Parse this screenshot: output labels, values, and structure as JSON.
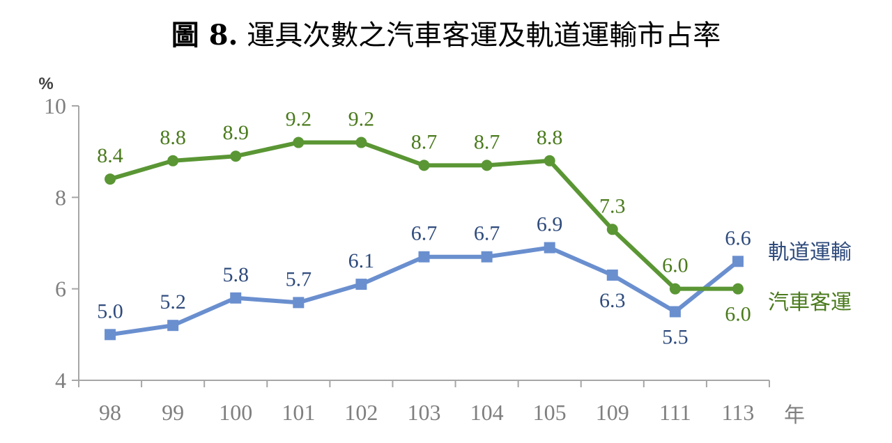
{
  "chart_data": {
    "type": "line",
    "title_fig": "圖 8.",
    "title_text": "運具次數之汽車客運及軌道運輸市占率",
    "ylabel": "%",
    "xlabel": "年",
    "categories": [
      "98",
      "99",
      "100",
      "101",
      "102",
      "103",
      "104",
      "105",
      "109",
      "111",
      "113"
    ],
    "yticks": [
      "4",
      "6",
      "8",
      "10"
    ],
    "ylim": [
      4,
      10
    ],
    "grid": false,
    "legend": "right",
    "series": [
      {
        "name": "軌道運輸",
        "color": "#6a8fcf",
        "label_color": "#2f4b7c",
        "marker": "square",
        "values": [
          5.0,
          5.2,
          5.8,
          5.7,
          6.1,
          6.7,
          6.7,
          6.9,
          6.3,
          5.5,
          6.6
        ],
        "labels": [
          "5.0",
          "5.2",
          "5.8",
          "5.7",
          "6.1",
          "6.7",
          "6.7",
          "6.9",
          "6.3",
          "5.5",
          "6.6"
        ]
      },
      {
        "name": "汽車客運",
        "color": "#5a9634",
        "label_color": "#4a7a1c",
        "marker": "circle",
        "values": [
          8.4,
          8.8,
          8.9,
          9.2,
          9.2,
          8.7,
          8.7,
          8.8,
          7.3,
          6.0,
          6.0
        ],
        "labels": [
          "8.4",
          "8.8",
          "8.9",
          "9.2",
          "9.2",
          "8.7",
          "8.7",
          "8.8",
          "7.3",
          "6.0",
          "6.0"
        ]
      }
    ]
  }
}
